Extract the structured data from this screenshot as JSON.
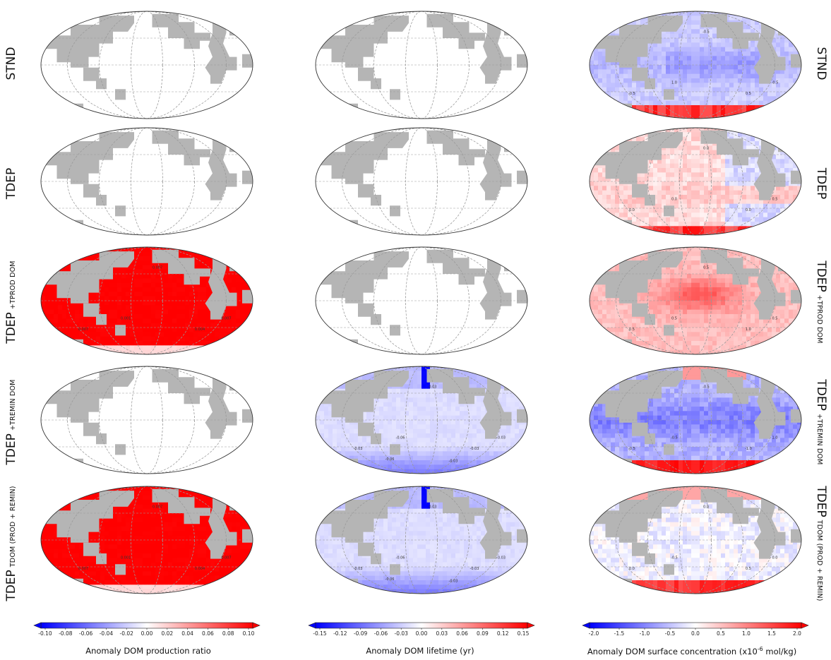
{
  "row_labels": [
    {
      "main": "STND",
      "sub": ""
    },
    {
      "main": "TDEP",
      "sub": ""
    },
    {
      "main": "TDEP",
      "sub": "+TPROD DOM"
    },
    {
      "main": "TDEP",
      "sub": "+TREMIN DOM"
    },
    {
      "main": "TDEP",
      "sub": "TDOM (PROD + REMIN)"
    }
  ],
  "chart_data": [
    {
      "type": "heatmap",
      "title": "",
      "colorbar_label": "Anomaly DOM production ratio",
      "colorbar_ticks": [
        "-0.10",
        "-0.08",
        "-0.06",
        "-0.04",
        "-0.02",
        "0.00",
        "0.02",
        "0.04",
        "0.06",
        "0.08",
        "0.10"
      ],
      "range": [
        -0.1,
        0.1
      ],
      "colormap": [
        "#0000ff",
        "#ffffff",
        "#ff0000"
      ],
      "panels": [
        {
          "row": "STND",
          "pattern": "none",
          "mean_anomaly": 0.0,
          "contour_labels": []
        },
        {
          "row": "TDEP",
          "pattern": "none",
          "mean_anomaly": 0.0,
          "contour_labels": []
        },
        {
          "row": "TDEP +TPROD DOM",
          "pattern": "production",
          "mean_anomaly": 0.1,
          "contour_labels": [
            "0.007",
            "0.007",
            "0.004",
            "0.001",
            "0.007"
          ]
        },
        {
          "row": "TDEP +TREMIN DOM",
          "pattern": "none",
          "mean_anomaly": 0.0,
          "contour_labels": []
        },
        {
          "row": "TDEP TDOM (PROD + REMIN)",
          "pattern": "production",
          "mean_anomaly": 0.1,
          "contour_labels": [
            "0.007",
            "0.007",
            "0.004",
            "0.001",
            "0.007"
          ]
        }
      ]
    },
    {
      "type": "heatmap",
      "title": "",
      "colorbar_label": "Anomaly DOM lifetime (yr)",
      "colorbar_ticks": [
        "-0.15",
        "-0.12",
        "-0.09",
        "-0.06",
        "-0.03",
        "0.00",
        "0.03",
        "0.06",
        "0.09",
        "0.12",
        "0.15"
      ],
      "range": [
        -0.15,
        0.15
      ],
      "colormap": [
        "#0000ff",
        "#ffffff",
        "#ff0000"
      ],
      "panels": [
        {
          "row": "STND",
          "pattern": "none",
          "mean_anomaly": 0.0,
          "contour_labels": []
        },
        {
          "row": "TDEP",
          "pattern": "none",
          "mean_anomaly": 0.0,
          "contour_labels": []
        },
        {
          "row": "TDEP +TPROD DOM",
          "pattern": "none",
          "mean_anomaly": 0.0,
          "contour_labels": []
        },
        {
          "row": "TDEP +TREMIN DOM",
          "pattern": "lifetime",
          "mean_anomaly": -0.02,
          "contour_labels": [
            "-0.03",
            "-0.03",
            "-0.03",
            "-0.06",
            "-0.03",
            "-0.06",
            "-0.03"
          ]
        },
        {
          "row": "TDEP TDOM (PROD + REMIN)",
          "pattern": "lifetime",
          "mean_anomaly": -0.02,
          "contour_labels": [
            "-0.03",
            "-0.03",
            "-0.03",
            "-0.06",
            "-0.03",
            "-0.06",
            "-0.03"
          ]
        }
      ]
    },
    {
      "type": "heatmap",
      "title": "",
      "colorbar_label": "Anomaly DOM surface concentration (x10",
      "colorbar_label_sup": "-6",
      "colorbar_label_tail": " mol/kg)",
      "colorbar_ticks": [
        "-2.0",
        "-1.5",
        "-1.0",
        "-0.5",
        "0.0",
        "0.5",
        "1.0",
        "1.5",
        "2.0"
      ],
      "range": [
        -2.0,
        2.0
      ],
      "colormap": [
        "#0000ff",
        "#ffffff",
        "#ff0000"
      ],
      "panels": [
        {
          "row": "STND",
          "pattern": "conc_neg",
          "mean_anomaly": -0.3,
          "contour_labels": [
            "-0.5",
            "-0.5",
            "0.5",
            "1.0",
            "-0.5"
          ]
        },
        {
          "row": "TDEP",
          "pattern": "conc_mixed",
          "mean_anomaly": 0.1,
          "contour_labels": [
            "0.0",
            "0.0",
            "0.0",
            "0.0",
            "0.5"
          ]
        },
        {
          "row": "TDEP +TPROD DOM",
          "pattern": "conc_pos",
          "mean_anomaly": 0.5,
          "contour_labels": [
            "0.5",
            "0.5",
            "1.0",
            "0.5",
            "0.5"
          ]
        },
        {
          "row": "TDEP +TREMIN DOM",
          "pattern": "conc_neg_strong",
          "mean_anomaly": -0.5,
          "contour_labels": [
            "-0.5",
            "-0.5",
            "-1.0",
            "-0.5",
            "1.0"
          ]
        },
        {
          "row": "TDEP TDOM (PROD + REMIN)",
          "pattern": "conc_weak",
          "mean_anomaly": -0.1,
          "contour_labels": [
            "0.0",
            "0.0",
            "0.5",
            "-0.5",
            "0.0"
          ]
        }
      ]
    }
  ],
  "colors": {
    "land": "#b5b5b5",
    "graticule": "#999999",
    "outline": "#333333"
  }
}
